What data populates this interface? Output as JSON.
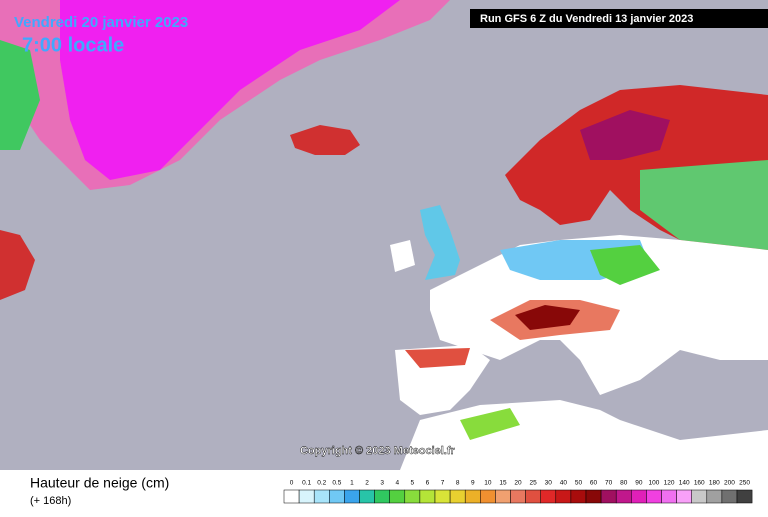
{
  "header": {
    "valid_date": "Vendredi 20 janvier 2023",
    "local_time": "7:00 locale",
    "run": "Run GFS 6 Z du Vendredi 13 janvier 2023"
  },
  "copyright": "Copyright © 2023 Meteociel.fr",
  "footer": {
    "title": "Hauteur de neige (cm)",
    "lead": "(+ 168h)"
  },
  "legend": {
    "items": [
      {
        "label": "0",
        "color": "#ffffff"
      },
      {
        "label": "0.1",
        "color": "#d8f4fc"
      },
      {
        "label": "0.2",
        "color": "#a8e4fa"
      },
      {
        "label": "0.5",
        "color": "#70c8f4"
      },
      {
        "label": "1",
        "color": "#3aa4ec"
      },
      {
        "label": "2",
        "color": "#28c4a8"
      },
      {
        "label": "3",
        "color": "#30c860"
      },
      {
        "label": "4",
        "color": "#54d040"
      },
      {
        "label": "5",
        "color": "#88dc3c"
      },
      {
        "label": "6",
        "color": "#b4e438"
      },
      {
        "label": "7",
        "color": "#d8e438"
      },
      {
        "label": "8",
        "color": "#e8d030"
      },
      {
        "label": "9",
        "color": "#ecb028"
      },
      {
        "label": "10",
        "color": "#f09030"
      },
      {
        "label": "15",
        "color": "#f0a070"
      },
      {
        "label": "20",
        "color": "#e87860"
      },
      {
        "label": "25",
        "color": "#e05040"
      },
      {
        "label": "30",
        "color": "#e02828"
      },
      {
        "label": "40",
        "color": "#c81818"
      },
      {
        "label": "50",
        "color": "#a80c0c"
      },
      {
        "label": "60",
        "color": "#880808"
      },
      {
        "label": "70",
        "color": "#a01060"
      },
      {
        "label": "80",
        "color": "#c0188c"
      },
      {
        "label": "90",
        "color": "#e020b8"
      },
      {
        "label": "100",
        "color": "#f040e0"
      },
      {
        "label": "120",
        "color": "#f070f0"
      },
      {
        "label": "140",
        "color": "#f8a0f8"
      },
      {
        "label": "160",
        "color": "#c8c8c8"
      },
      {
        "label": "180",
        "color": "#a0a0a0"
      },
      {
        "label": "200",
        "color": "#707070"
      },
      {
        "label": "250",
        "color": "#404040"
      }
    ]
  }
}
